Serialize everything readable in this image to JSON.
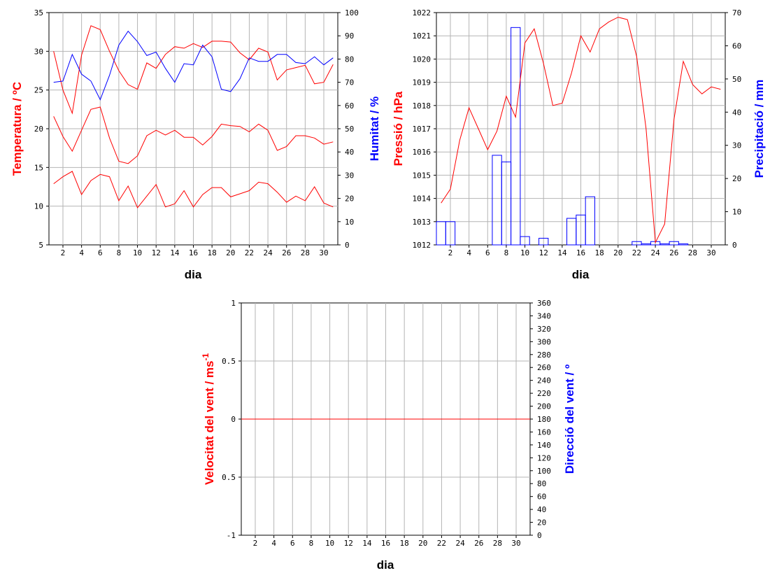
{
  "colors": {
    "red": "#ff0000",
    "blue": "#0000ff",
    "grid": "#b4b4b4",
    "frame": "#000000"
  },
  "chart_data": [
    {
      "type": "line",
      "xlabel": "dia",
      "ylabel_left": "Temperatura / ºC",
      "ylabel_right": "Humitat / %",
      "x": [
        1,
        2,
        3,
        4,
        5,
        6,
        7,
        8,
        9,
        10,
        11,
        12,
        13,
        14,
        15,
        16,
        17,
        18,
        19,
        20,
        21,
        22,
        23,
        24,
        25,
        26,
        27,
        28,
        29,
        30,
        31
      ],
      "x_ticks": [
        "2",
        "4",
        "6",
        "8",
        "10",
        "12",
        "14",
        "16",
        "18",
        "20",
        "22",
        "24",
        "26",
        "28",
        "30"
      ],
      "ylim_left": [
        5,
        35
      ],
      "yticks_left": [
        "5",
        "10",
        "15",
        "20",
        "25",
        "30",
        "35"
      ],
      "ylim_right": [
        0,
        100
      ],
      "yticks_right": [
        "0",
        "10",
        "20",
        "30",
        "40",
        "50",
        "60",
        "70",
        "80",
        "90",
        "100"
      ],
      "series": [
        {
          "axis": "left",
          "color": "#ff0000",
          "values": [
            30.0,
            25.0,
            22.0,
            29.5,
            33.3,
            32.8,
            30.0,
            27.5,
            25.7,
            25.1,
            28.5,
            27.8,
            29.6,
            30.6,
            30.4,
            31.0,
            30.5,
            31.3,
            31.3,
            31.2,
            29.8,
            28.9,
            30.4,
            29.9,
            26.3,
            27.6,
            27.9,
            28.2,
            25.8,
            26.0,
            28.3
          ]
        },
        {
          "axis": "left",
          "color": "#ff0000",
          "values": [
            21.6,
            19.0,
            17.1,
            19.8,
            22.5,
            22.8,
            18.8,
            15.8,
            15.5,
            16.5,
            19.1,
            19.8,
            19.2,
            19.8,
            18.9,
            18.9,
            17.9,
            19.0,
            20.6,
            20.4,
            20.3,
            19.6,
            20.6,
            19.8,
            17.2,
            17.7,
            19.1,
            19.1,
            18.8,
            18.0,
            18.3
          ]
        },
        {
          "axis": "left",
          "color": "#ff0000",
          "values": [
            12.9,
            13.8,
            14.5,
            11.5,
            13.3,
            14.1,
            13.8,
            10.7,
            12.6,
            9.8,
            11.3,
            12.8,
            9.9,
            10.3,
            12.0,
            9.9,
            11.5,
            12.4,
            12.4,
            11.2,
            11.6,
            12.0,
            13.1,
            12.9,
            11.8,
            10.5,
            11.3,
            10.7,
            12.5,
            10.4,
            9.9
          ]
        },
        {
          "axis": "right",
          "color": "#0000ff",
          "values": [
            70.0,
            70.5,
            82.0,
            73.5,
            70.5,
            62.5,
            73.0,
            86.0,
            92.0,
            87.5,
            81.5,
            83.0,
            76.0,
            70.0,
            78.0,
            77.5,
            86.0,
            81.0,
            67.0,
            66.0,
            71.5,
            80.5,
            79.0,
            79.0,
            82.0,
            82.0,
            78.5,
            78.0,
            81.0,
            77.5,
            80.5
          ]
        }
      ]
    },
    {
      "type": "line+bar",
      "xlabel": "dia",
      "ylabel_left": "Pressió / hPa",
      "ylabel_right": "Precipitació / mm",
      "x_ticks": [
        "2",
        "4",
        "6",
        "8",
        "10",
        "12",
        "14",
        "16",
        "18",
        "20",
        "22",
        "24",
        "26",
        "28",
        "30"
      ],
      "ylim_left": [
        1012,
        1022
      ],
      "yticks_left": [
        "1012",
        "1013",
        "1014",
        "1015",
        "1016",
        "1017",
        "1018",
        "1019",
        "1020",
        "1021",
        "1022"
      ],
      "ylim_right": [
        0,
        70
      ],
      "yticks_right": [
        "0",
        "10",
        "20",
        "30",
        "40",
        "50",
        "60",
        "70"
      ],
      "pressure": [
        1013.8,
        1014.4,
        1016.5,
        1017.9,
        1017.0,
        1016.1,
        1016.9,
        1018.4,
        1017.5,
        1020.7,
        1021.3,
        1019.8,
        1018.0,
        1018.1,
        1019.4,
        1021.0,
        1020.3,
        1021.3,
        1021.6,
        1021.8,
        1021.7,
        1020.1,
        1017.0,
        1012.1,
        1012.9,
        1017.4,
        1019.9,
        1018.9,
        1018.5,
        1018.8,
        1018.7
      ],
      "precip_days": [
        1,
        2,
        3,
        4,
        5,
        6,
        7,
        8,
        9,
        10,
        11,
        12,
        13,
        14,
        15,
        16,
        17,
        18,
        19,
        20,
        21,
        22,
        23,
        24,
        25,
        26,
        27,
        28,
        29,
        30
      ],
      "precipitation": [
        7.0,
        7.0,
        0,
        0,
        0,
        0,
        27.0,
        25.0,
        65.5,
        2.5,
        0,
        2.0,
        0,
        0,
        8.0,
        9.0,
        14.5,
        0,
        0,
        0,
        0,
        1.0,
        0.3,
        1.0,
        0.3,
        1.0,
        0.3,
        0,
        0,
        0
      ]
    },
    {
      "type": "line",
      "xlabel": "dia",
      "ylabel_left": "Velocitat del vent / ms",
      "ylabel_left_sup": "-1",
      "ylabel_right": "Direcció del vent / º",
      "x_ticks": [
        "2",
        "4",
        "6",
        "8",
        "10",
        "12",
        "14",
        "16",
        "18",
        "20",
        "22",
        "24",
        "26",
        "28",
        "30"
      ],
      "ylim_left": [
        -1,
        1
      ],
      "yticks_left": [
        "-1",
        "0.5",
        "0",
        "0.5",
        "1"
      ],
      "ylim_right": [
        0,
        360
      ],
      "yticks_right": [
        "0",
        "20",
        "40",
        "60",
        "80",
        "100",
        "120",
        "140",
        "160",
        "180",
        "200",
        "220",
        "240",
        "260",
        "280",
        "300",
        "320",
        "340",
        "360"
      ],
      "speed": [
        0,
        0,
        0,
        0,
        0,
        0,
        0,
        0,
        0,
        0,
        0,
        0,
        0,
        0,
        0,
        0,
        0,
        0,
        0,
        0,
        0,
        0,
        0,
        0,
        0,
        0,
        0,
        0,
        0,
        0,
        0
      ]
    }
  ]
}
